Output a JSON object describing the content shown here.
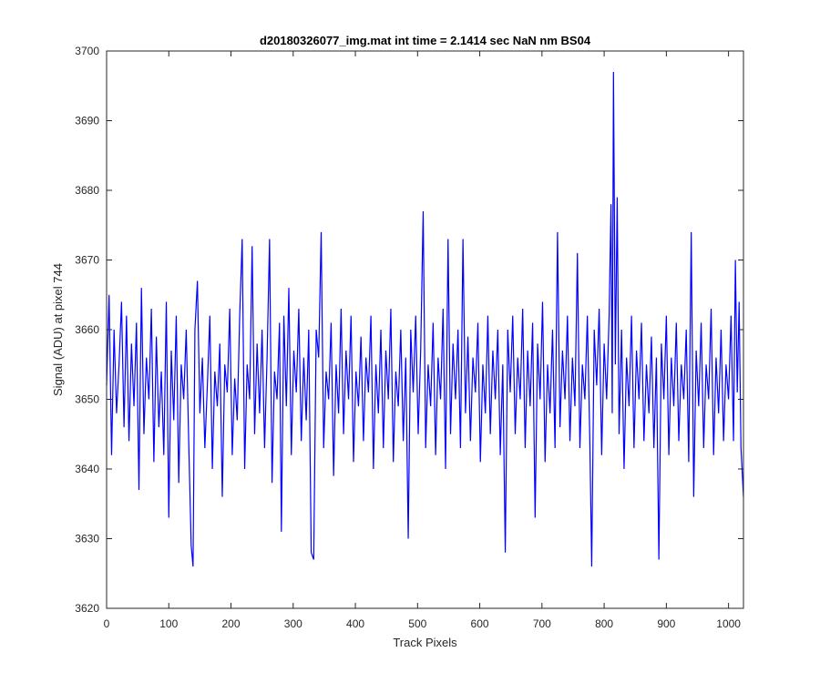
{
  "chart_data": {
    "type": "line",
    "title": "d20180326077_img.mat int time = 2.1414 sec  NaN nm BS04",
    "xlabel": "Track Pixels",
    "ylabel": "Signal (ADU) at pixel 744",
    "xlim": [
      0,
      1024
    ],
    "ylim": [
      3620,
      3700
    ],
    "xticks": [
      0,
      100,
      200,
      300,
      400,
      500,
      600,
      700,
      800,
      900,
      1000
    ],
    "yticks": [
      3620,
      3630,
      3640,
      3650,
      3660,
      3670,
      3680,
      3690,
      3700
    ],
    "grid": false,
    "box": true,
    "line_color": "#0000ff",
    "series": [
      {
        "points": [
          [
            0,
            3652
          ],
          [
            4,
            3665
          ],
          [
            8,
            3642
          ],
          [
            12,
            3660
          ],
          [
            16,
            3648
          ],
          [
            20,
            3655
          ],
          [
            24,
            3664
          ],
          [
            28,
            3646
          ],
          [
            32,
            3662
          ],
          [
            36,
            3644
          ],
          [
            40,
            3658
          ],
          [
            44,
            3649
          ],
          [
            48,
            3661
          ],
          [
            52,
            3637
          ],
          [
            56,
            3666
          ],
          [
            60,
            3645
          ],
          [
            64,
            3656
          ],
          [
            68,
            3650
          ],
          [
            72,
            3663
          ],
          [
            76,
            3641
          ],
          [
            80,
            3659
          ],
          [
            84,
            3646
          ],
          [
            88,
            3654
          ],
          [
            92,
            3642
          ],
          [
            96,
            3664
          ],
          [
            100,
            3633
          ],
          [
            104,
            3657
          ],
          [
            108,
            3647
          ],
          [
            112,
            3662
          ],
          [
            116,
            3638
          ],
          [
            120,
            3655
          ],
          [
            124,
            3650
          ],
          [
            128,
            3660
          ],
          [
            132,
            3644
          ],
          [
            136,
            3629
          ],
          [
            139,
            3626
          ],
          [
            142,
            3660
          ],
          [
            146,
            3667
          ],
          [
            150,
            3648
          ],
          [
            154,
            3656
          ],
          [
            158,
            3643
          ],
          [
            162,
            3652
          ],
          [
            166,
            3662
          ],
          [
            170,
            3640
          ],
          [
            174,
            3654
          ],
          [
            178,
            3649
          ],
          [
            182,
            3658
          ],
          [
            186,
            3636
          ],
          [
            190,
            3655
          ],
          [
            194,
            3651
          ],
          [
            198,
            3663
          ],
          [
            202,
            3642
          ],
          [
            206,
            3653
          ],
          [
            210,
            3647
          ],
          [
            214,
            3662
          ],
          [
            218,
            3673
          ],
          [
            222,
            3640
          ],
          [
            226,
            3655
          ],
          [
            230,
            3650
          ],
          [
            234,
            3672
          ],
          [
            238,
            3645
          ],
          [
            242,
            3658
          ],
          [
            246,
            3648
          ],
          [
            250,
            3660
          ],
          [
            254,
            3643
          ],
          [
            258,
            3656
          ],
          [
            262,
            3673
          ],
          [
            266,
            3638
          ],
          [
            270,
            3654
          ],
          [
            274,
            3650
          ],
          [
            278,
            3661
          ],
          [
            281,
            3631
          ],
          [
            285,
            3662
          ],
          [
            289,
            3649
          ],
          [
            293,
            3666
          ],
          [
            297,
            3642
          ],
          [
            301,
            3657
          ],
          [
            305,
            3651
          ],
          [
            309,
            3663
          ],
          [
            313,
            3644
          ],
          [
            317,
            3656
          ],
          [
            321,
            3647
          ],
          [
            325,
            3660
          ],
          [
            329,
            3628
          ],
          [
            333,
            3627
          ],
          [
            337,
            3660
          ],
          [
            341,
            3656
          ],
          [
            345,
            3674
          ],
          [
            349,
            3643
          ],
          [
            353,
            3654
          ],
          [
            357,
            3650
          ],
          [
            361,
            3661
          ],
          [
            365,
            3639
          ],
          [
            369,
            3655
          ],
          [
            373,
            3648
          ],
          [
            377,
            3663
          ],
          [
            381,
            3645
          ],
          [
            385,
            3657
          ],
          [
            389,
            3650
          ],
          [
            393,
            3662
          ],
          [
            397,
            3641
          ],
          [
            401,
            3654
          ],
          [
            405,
            3649
          ],
          [
            409,
            3659
          ],
          [
            413,
            3644
          ],
          [
            417,
            3656
          ],
          [
            421,
            3651
          ],
          [
            425,
            3662
          ],
          [
            429,
            3640
          ],
          [
            433,
            3655
          ],
          [
            437,
            3648
          ],
          [
            441,
            3660
          ],
          [
            445,
            3643
          ],
          [
            449,
            3657
          ],
          [
            453,
            3650
          ],
          [
            457,
            3663
          ],
          [
            461,
            3641
          ],
          [
            465,
            3654
          ],
          [
            469,
            3649
          ],
          [
            473,
            3660
          ],
          [
            477,
            3644
          ],
          [
            481,
            3656
          ],
          [
            485,
            3630
          ],
          [
            489,
            3660
          ],
          [
            493,
            3651
          ],
          [
            497,
            3662
          ],
          [
            501,
            3645
          ],
          [
            505,
            3657
          ],
          [
            509,
            3677
          ],
          [
            513,
            3643
          ],
          [
            517,
            3655
          ],
          [
            521,
            3649
          ],
          [
            525,
            3661
          ],
          [
            529,
            3642
          ],
          [
            533,
            3656
          ],
          [
            537,
            3650
          ],
          [
            541,
            3663
          ],
          [
            545,
            3640
          ],
          [
            549,
            3673
          ],
          [
            553,
            3645
          ],
          [
            557,
            3658
          ],
          [
            561,
            3650
          ],
          [
            565,
            3660
          ],
          [
            569,
            3643
          ],
          [
            573,
            3673
          ],
          [
            577,
            3648
          ],
          [
            581,
            3659
          ],
          [
            585,
            3644
          ],
          [
            589,
            3656
          ],
          [
            593,
            3651
          ],
          [
            597,
            3661
          ],
          [
            601,
            3641
          ],
          [
            605,
            3655
          ],
          [
            609,
            3648
          ],
          [
            613,
            3662
          ],
          [
            617,
            3645
          ],
          [
            621,
            3657
          ],
          [
            625,
            3650
          ],
          [
            629,
            3660
          ],
          [
            633,
            3642
          ],
          [
            637,
            3655
          ],
          [
            641,
            3628
          ],
          [
            645,
            3660
          ],
          [
            649,
            3651
          ],
          [
            653,
            3662
          ],
          [
            657,
            3645
          ],
          [
            661,
            3656
          ],
          [
            665,
            3650
          ],
          [
            669,
            3663
          ],
          [
            673,
            3643
          ],
          [
            677,
            3657
          ],
          [
            681,
            3649
          ],
          [
            685,
            3661
          ],
          [
            689,
            3633
          ],
          [
            693,
            3658
          ],
          [
            697,
            3650
          ],
          [
            701,
            3664
          ],
          [
            705,
            3641
          ],
          [
            709,
            3655
          ],
          [
            713,
            3648
          ],
          [
            717,
            3660
          ],
          [
            721,
            3643
          ],
          [
            725,
            3674
          ],
          [
            729,
            3646
          ],
          [
            733,
            3657
          ],
          [
            737,
            3650
          ],
          [
            741,
            3662
          ],
          [
            745,
            3644
          ],
          [
            749,
            3656
          ],
          [
            753,
            3649
          ],
          [
            757,
            3671
          ],
          [
            761,
            3643
          ],
          [
            765,
            3655
          ],
          [
            769,
            3650
          ],
          [
            773,
            3662
          ],
          [
            777,
            3644
          ],
          [
            780,
            3626
          ],
          [
            784,
            3660
          ],
          [
            788,
            3652
          ],
          [
            792,
            3663
          ],
          [
            796,
            3642
          ],
          [
            800,
            3658
          ],
          [
            804,
            3650
          ],
          [
            808,
            3662
          ],
          [
            811,
            3678
          ],
          [
            813,
            3648
          ],
          [
            815,
            3697
          ],
          [
            818,
            3655
          ],
          [
            821,
            3679
          ],
          [
            824,
            3645
          ],
          [
            828,
            3660
          ],
          [
            832,
            3640
          ],
          [
            836,
            3656
          ],
          [
            840,
            3649
          ],
          [
            844,
            3662
          ],
          [
            848,
            3643
          ],
          [
            852,
            3657
          ],
          [
            856,
            3650
          ],
          [
            860,
            3661
          ],
          [
            864,
            3644
          ],
          [
            868,
            3655
          ],
          [
            872,
            3648
          ],
          [
            876,
            3659
          ],
          [
            880,
            3643
          ],
          [
            884,
            3656
          ],
          [
            888,
            3627
          ],
          [
            892,
            3658
          ],
          [
            896,
            3650
          ],
          [
            900,
            3662
          ],
          [
            904,
            3642
          ],
          [
            908,
            3656
          ],
          [
            912,
            3649
          ],
          [
            916,
            3661
          ],
          [
            920,
            3644
          ],
          [
            924,
            3655
          ],
          [
            928,
            3650
          ],
          [
            932,
            3660
          ],
          [
            936,
            3641
          ],
          [
            940,
            3674
          ],
          [
            944,
            3636
          ],
          [
            948,
            3657
          ],
          [
            952,
            3649
          ],
          [
            956,
            3661
          ],
          [
            960,
            3643
          ],
          [
            964,
            3655
          ],
          [
            968,
            3650
          ],
          [
            972,
            3663
          ],
          [
            976,
            3642
          ],
          [
            980,
            3656
          ],
          [
            984,
            3648
          ],
          [
            988,
            3660
          ],
          [
            992,
            3644
          ],
          [
            996,
            3655
          ],
          [
            1000,
            3650
          ],
          [
            1004,
            3662
          ],
          [
            1008,
            3644
          ],
          [
            1011,
            3670
          ],
          [
            1014,
            3651
          ],
          [
            1017,
            3664
          ],
          [
            1020,
            3643
          ],
          [
            1024,
            3636
          ]
        ]
      }
    ]
  }
}
